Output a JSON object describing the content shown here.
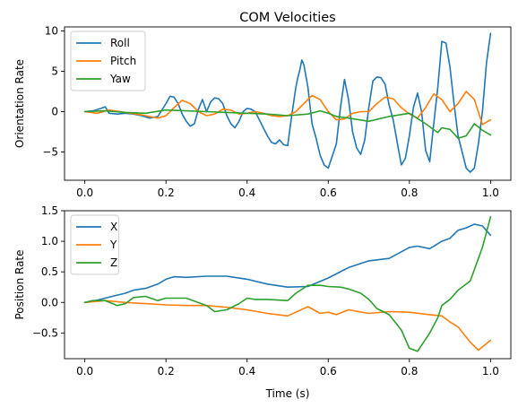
{
  "chart_data": {
    "title": "COM Velocities",
    "colors": [
      "#1f77b4",
      "#ff7f0e",
      "#2ca02c"
    ],
    "subplots": [
      {
        "type": "line",
        "title": "COM Velocities",
        "xlabel": "",
        "ylabel": "Orientation Rate",
        "xlim": [
          -0.05,
          1.05
        ],
        "ylim": [
          -8.5,
          10.5
        ],
        "xticks": [
          0.0,
          0.2,
          0.4,
          0.6,
          0.8,
          1.0
        ],
        "xtick_labels": [
          "0.0",
          "0.2",
          "0.4",
          "0.6",
          "0.8",
          "1.0"
        ],
        "yticks": [
          -5,
          0,
          5,
          10
        ],
        "ytick_labels": [
          "−5",
          "0",
          "5",
          "10"
        ],
        "legend": "upper-left",
        "series": [
          {
            "name": "Roll",
            "x": [
              0.0,
              0.02,
              0.04,
              0.05,
              0.06,
              0.08,
              0.1,
              0.12,
              0.14,
              0.16,
              0.18,
              0.2,
              0.21,
              0.22,
              0.23,
              0.24,
              0.25,
              0.26,
              0.27,
              0.28,
              0.29,
              0.3,
              0.31,
              0.32,
              0.33,
              0.34,
              0.35,
              0.36,
              0.37,
              0.38,
              0.39,
              0.4,
              0.41,
              0.42,
              0.43,
              0.44,
              0.45,
              0.46,
              0.47,
              0.48,
              0.49,
              0.5,
              0.51,
              0.52,
              0.525,
              0.53,
              0.535,
              0.54,
              0.55,
              0.56,
              0.57,
              0.58,
              0.59,
              0.6,
              0.61,
              0.62,
              0.63,
              0.64,
              0.65,
              0.66,
              0.67,
              0.68,
              0.69,
              0.7,
              0.71,
              0.72,
              0.73,
              0.74,
              0.75,
              0.76,
              0.77,
              0.78,
              0.79,
              0.8,
              0.81,
              0.82,
              0.83,
              0.84,
              0.85,
              0.86,
              0.87,
              0.88,
              0.89,
              0.9,
              0.91,
              0.92,
              0.93,
              0.94,
              0.95,
              0.96,
              0.97,
              0.98,
              0.99,
              1.0
            ],
            "y": [
              0.0,
              0.1,
              0.4,
              0.6,
              -0.2,
              -0.3,
              -0.2,
              -0.3,
              -0.5,
              -0.8,
              -0.6,
              1.0,
              1.9,
              1.8,
              1.0,
              -0.3,
              -1.2,
              -1.8,
              -1.5,
              0.3,
              1.5,
              0.0,
              1.2,
              1.7,
              1.6,
              1.0,
              -0.5,
              -1.5,
              -2.0,
              -1.2,
              0.0,
              0.4,
              0.3,
              0.0,
              -1.0,
              -2.0,
              -3.0,
              -3.8,
              -4.0,
              -3.5,
              -4.1,
              -4.2,
              -0.5,
              3.0,
              4.2,
              5.2,
              6.4,
              5.8,
              3.0,
              -1.5,
              -3.3,
              -5.4,
              -6.6,
              -7.0,
              -5.5,
              -4.0,
              0.5,
              4.0,
              1.5,
              -2.5,
              -4.5,
              -5.3,
              -3.5,
              0.5,
              3.8,
              4.3,
              4.2,
              3.4,
              0.8,
              -1.0,
              -3.8,
              -6.6,
              -5.8,
              -3.0,
              0.5,
              2.3,
              0.0,
              -4.8,
              -6.2,
              -1.5,
              3.0,
              8.7,
              8.5,
              5.5,
              1.0,
              -3.0,
              -5.0,
              -7.0,
              -7.5,
              -7.0,
              -4.0,
              0.0,
              6.0,
              9.7
            ]
          },
          {
            "name": "Pitch",
            "x": [
              0.0,
              0.03,
              0.06,
              0.1,
              0.14,
              0.18,
              0.2,
              0.22,
              0.24,
              0.26,
              0.28,
              0.3,
              0.32,
              0.34,
              0.36,
              0.38,
              0.4,
              0.42,
              0.44,
              0.46,
              0.48,
              0.5,
              0.52,
              0.54,
              0.56,
              0.58,
              0.6,
              0.62,
              0.64,
              0.66,
              0.68,
              0.7,
              0.72,
              0.74,
              0.76,
              0.78,
              0.8,
              0.82,
              0.84,
              0.86,
              0.88,
              0.9,
              0.92,
              0.94,
              0.96,
              0.98,
              1.0
            ],
            "y": [
              0.0,
              -0.2,
              0.2,
              -0.1,
              -0.4,
              -0.8,
              -0.5,
              0.5,
              1.4,
              1.0,
              0.0,
              -0.5,
              -0.3,
              0.3,
              0.2,
              -0.3,
              -0.2,
              0.0,
              -0.2,
              -0.5,
              -0.6,
              -0.5,
              0.0,
              1.0,
              2.0,
              1.5,
              0.0,
              -1.0,
              -0.9,
              -0.2,
              0.0,
              0.0,
              1.0,
              1.8,
              1.6,
              0.5,
              -0.3,
              -0.8,
              0.5,
              2.2,
              1.5,
              0.0,
              1.0,
              2.5,
              1.5,
              -1.6,
              -1.0
            ]
          },
          {
            "name": "Yaw",
            "x": [
              0.0,
              0.05,
              0.1,
              0.15,
              0.2,
              0.25,
              0.3,
              0.35,
              0.4,
              0.45,
              0.5,
              0.55,
              0.58,
              0.6,
              0.62,
              0.65,
              0.7,
              0.75,
              0.8,
              0.84,
              0.87,
              0.88,
              0.9,
              0.92,
              0.94,
              0.96,
              0.98,
              1.0
            ],
            "y": [
              0.0,
              0.1,
              -0.1,
              -0.2,
              0.2,
              0.1,
              0.0,
              -0.1,
              -0.2,
              -0.3,
              -0.5,
              -0.3,
              0.1,
              -0.2,
              -0.6,
              -0.8,
              -1.2,
              -0.6,
              -0.2,
              -1.5,
              -2.6,
              -2.0,
              -2.2,
              -3.3,
              -3.0,
              -1.5,
              -2.3,
              -2.9
            ]
          }
        ]
      },
      {
        "type": "line",
        "title": "",
        "xlabel": "Time (s)",
        "ylabel": "Position Rate",
        "xlim": [
          -0.05,
          1.05
        ],
        "ylim": [
          -0.92,
          1.5
        ],
        "xticks": [
          0.0,
          0.2,
          0.4,
          0.6,
          0.8,
          1.0
        ],
        "xtick_labels": [
          "0.0",
          "0.2",
          "0.4",
          "0.6",
          "0.8",
          "1.0"
        ],
        "yticks": [
          -0.5,
          0.0,
          0.5,
          1.0,
          1.5
        ],
        "ytick_labels": [
          "−0.5",
          "0.0",
          "0.5",
          "1.0",
          "1.5"
        ],
        "legend": "upper-left",
        "series": [
          {
            "name": "X",
            "x": [
              0.0,
              0.02,
              0.05,
              0.08,
              0.1,
              0.12,
              0.15,
              0.18,
              0.2,
              0.22,
              0.25,
              0.3,
              0.35,
              0.4,
              0.45,
              0.5,
              0.55,
              0.6,
              0.65,
              0.7,
              0.75,
              0.8,
              0.82,
              0.85,
              0.88,
              0.9,
              0.92,
              0.94,
              0.96,
              0.98,
              1.0
            ],
            "y": [
              0.0,
              0.02,
              0.07,
              0.12,
              0.15,
              0.2,
              0.23,
              0.3,
              0.38,
              0.42,
              0.41,
              0.43,
              0.43,
              0.38,
              0.3,
              0.25,
              0.26,
              0.4,
              0.57,
              0.68,
              0.72,
              0.9,
              0.92,
              0.88,
              1.0,
              1.05,
              1.18,
              1.22,
              1.28,
              1.25,
              1.1
            ]
          },
          {
            "name": "Y",
            "x": [
              0.0,
              0.05,
              0.1,
              0.15,
              0.2,
              0.25,
              0.3,
              0.35,
              0.4,
              0.45,
              0.5,
              0.55,
              0.58,
              0.6,
              0.62,
              0.65,
              0.7,
              0.75,
              0.8,
              0.85,
              0.88,
              0.9,
              0.92,
              0.95,
              0.97,
              1.0
            ],
            "y": [
              0.0,
              0.03,
              0.0,
              -0.02,
              -0.04,
              -0.05,
              -0.05,
              -0.08,
              -0.12,
              -0.18,
              -0.22,
              -0.07,
              -0.18,
              -0.16,
              -0.2,
              -0.12,
              -0.18,
              -0.15,
              -0.16,
              -0.2,
              -0.22,
              -0.32,
              -0.4,
              -0.65,
              -0.78,
              -0.62
            ]
          },
          {
            "name": "Z",
            "x": [
              0.0,
              0.02,
              0.05,
              0.08,
              0.1,
              0.12,
              0.15,
              0.18,
              0.2,
              0.25,
              0.3,
              0.32,
              0.35,
              0.38,
              0.4,
              0.42,
              0.45,
              0.5,
              0.52,
              0.55,
              0.58,
              0.6,
              0.63,
              0.65,
              0.68,
              0.7,
              0.72,
              0.75,
              0.78,
              0.8,
              0.82,
              0.85,
              0.87,
              0.88,
              0.9,
              0.92,
              0.95,
              0.98,
              1.0
            ],
            "y": [
              0.0,
              0.03,
              0.03,
              -0.05,
              -0.02,
              0.08,
              0.1,
              0.03,
              0.07,
              0.07,
              -0.05,
              -0.15,
              -0.12,
              -0.02,
              0.07,
              0.05,
              0.05,
              0.03,
              0.15,
              0.28,
              0.28,
              0.26,
              0.25,
              0.22,
              0.15,
              0.05,
              -0.1,
              -0.2,
              -0.45,
              -0.75,
              -0.8,
              -0.5,
              -0.25,
              -0.05,
              0.05,
              0.2,
              0.35,
              0.9,
              1.4
            ]
          }
        ]
      }
    ]
  }
}
